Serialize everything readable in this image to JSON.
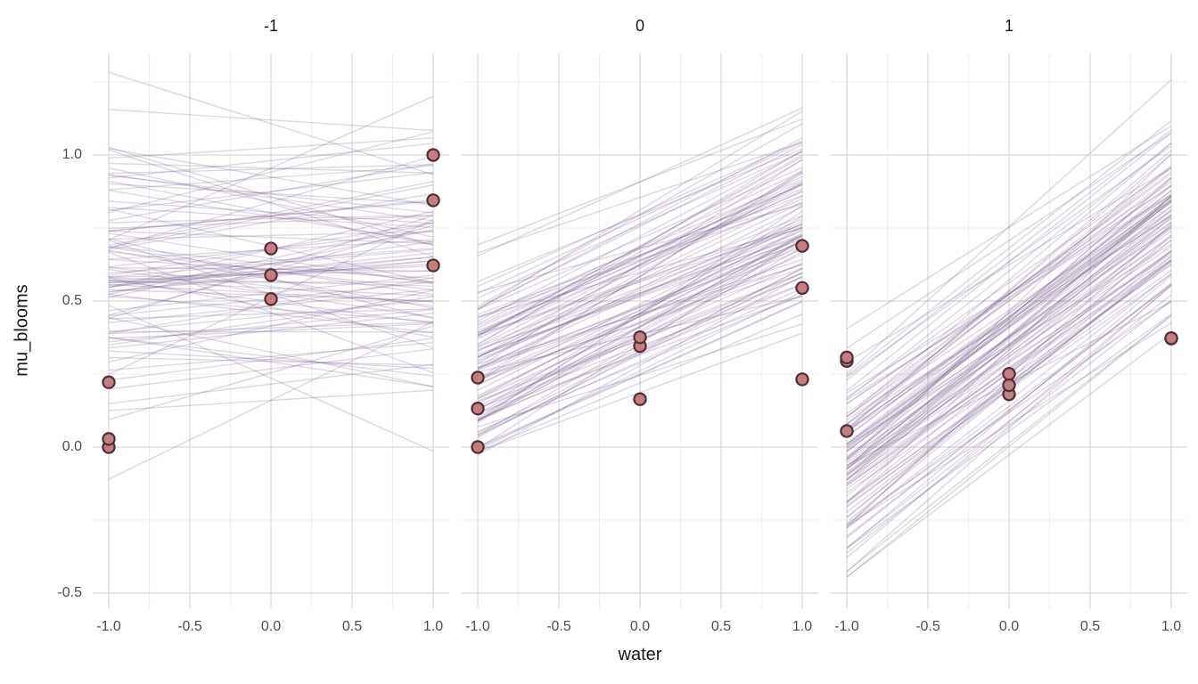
{
  "chart_data": {
    "type": "line+scatter",
    "description": "Faceted regression plot: bundles of semi-transparent posterior regression lines of mu_blooms on water, with observed data points, in three facets of the shade variable (-1, 0, 1).",
    "xlabel": "water",
    "ylabel": "mu_blooms",
    "x_ticks": [
      -1.0,
      -0.5,
      0.0,
      0.5,
      1.0
    ],
    "x_tick_labels": [
      "-1.0",
      "-0.5",
      "0.0",
      "0.5",
      "1.0"
    ],
    "y_ticks": [
      1.0,
      0.5,
      0.0,
      -0.5
    ],
    "y_tick_labels": [
      "1.0",
      "0.5",
      "0.0",
      "-0.5"
    ],
    "x_minor": [
      -0.75,
      -0.25,
      0.25,
      0.75
    ],
    "y_minor": [
      -0.25,
      0.25,
      0.75,
      1.25
    ],
    "xlim": [
      -1.0989,
      1.0989
    ],
    "ylim": [
      -0.552,
      1.348
    ],
    "grid": true,
    "legend": "none",
    "line_x_range": [
      -1,
      1
    ],
    "facets": [
      {
        "label": "-1",
        "points": [
          [
            -1,
            0.0
          ],
          [
            -1,
            0.028
          ],
          [
            -1,
            0.222
          ],
          [
            0,
            0.507
          ],
          [
            0,
            0.589
          ],
          [
            0,
            0.68
          ],
          [
            1,
            0.622
          ],
          [
            1,
            0.845
          ],
          [
            1,
            1.0
          ]
        ],
        "posterior_lines": {
          "n": 100,
          "seed": 41,
          "intercept_mean": 0.64,
          "intercept_sd": 0.2,
          "slope_mean": 0.01,
          "slope_sd": 0.1
        }
      },
      {
        "label": "0",
        "points": [
          [
            -1,
            0.0
          ],
          [
            -1,
            0.132
          ],
          [
            -1,
            0.238
          ],
          [
            0,
            0.164
          ],
          [
            0,
            0.346
          ],
          [
            0,
            0.376
          ],
          [
            1,
            0.232
          ],
          [
            1,
            0.545
          ],
          [
            1,
            0.689
          ]
        ],
        "posterior_lines": {
          "n": 100,
          "seed": 42,
          "intercept_mean": 0.5,
          "intercept_sd": 0.17,
          "slope_mean": 0.26,
          "slope_sd": 0.05
        }
      },
      {
        "label": "1",
        "points": [
          [
            -1,
            0.055
          ],
          [
            -1,
            0.295
          ],
          [
            -1,
            0.307
          ],
          [
            0,
            0.181
          ],
          [
            0,
            0.212
          ],
          [
            0,
            0.251
          ],
          [
            1,
            0.372
          ],
          [
            1,
            0.373
          ]
        ],
        "posterior_lines": {
          "n": 100,
          "seed": 43,
          "intercept_mean": 0.35,
          "intercept_sd": 0.18,
          "slope_mean": 0.41,
          "slope_sd": 0.05
        }
      }
    ],
    "colors": {
      "line": "#73588C",
      "line_opacity": "0.24",
      "point_fill": "#C27F7E",
      "point_stroke": "#4F2E3A",
      "grid_major": "#E2E2E2",
      "grid_minor": "#F0F0F0",
      "tick_text": "#4D4D4D",
      "title_text": "#171717",
      "background": "#FFFFFF"
    }
  }
}
